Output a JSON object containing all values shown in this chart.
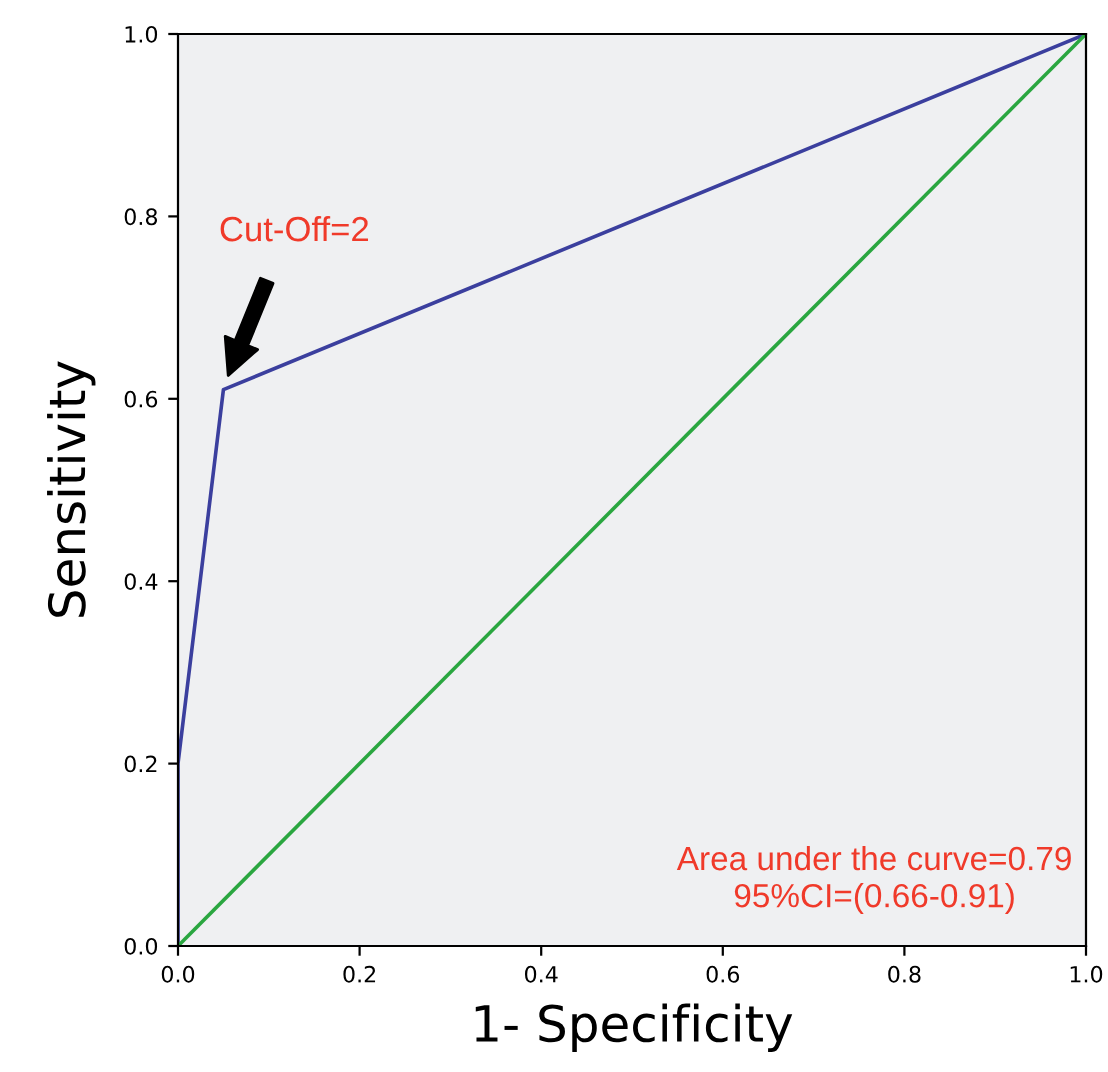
{
  "chart_data": {
    "type": "line",
    "xlabel": "1- Specificity",
    "ylabel": "Sensitivity",
    "series": [
      {
        "x": [
          0,
          0,
          0.05,
          1
        ],
        "values": [
          0,
          0.2,
          0.61,
          1
        ],
        "color": "#3b3f9e"
      },
      {
        "x": [
          0,
          1
        ],
        "values": [
          0,
          1
        ],
        "color": "#2aa640"
      }
    ],
    "xlim": [
      0,
      1
    ],
    "ylim": [
      0,
      1
    ],
    "xticks": [
      {
        "value": 0,
        "label": "0.0"
      },
      {
        "value": 0.2,
        "label": "0.2"
      },
      {
        "value": 0.4,
        "label": "0.4"
      },
      {
        "value": 0.6,
        "label": "0.6"
      },
      {
        "value": 0.8,
        "label": "0.8"
      },
      {
        "value": 1,
        "label": "1.0"
      }
    ],
    "yticks": [
      {
        "value": 0,
        "label": "0.0"
      },
      {
        "value": 0.2,
        "label": "0.2"
      },
      {
        "value": 0.4,
        "label": "0.4"
      },
      {
        "value": 0.6,
        "label": "0.6"
      },
      {
        "value": 0.8,
        "label": "0.8"
      },
      {
        "value": 1,
        "label": "1.0"
      }
    ],
    "grid": false,
    "legend": false,
    "marker": "none",
    "line_style": "solid",
    "annotations": [
      "Cut-Off=2",
      "Area under the curve=0.79\n95%CI=(0.66-0.91)"
    ]
  }
}
